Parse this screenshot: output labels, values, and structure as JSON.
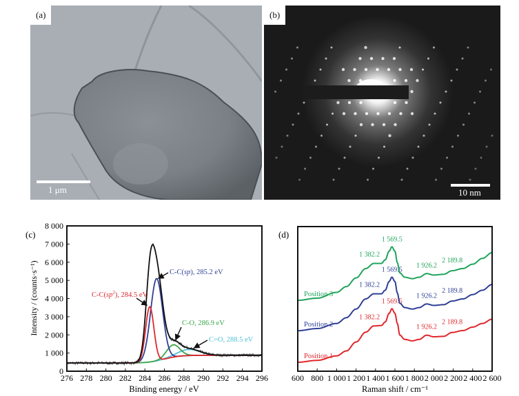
{
  "panels": {
    "a": {
      "label": "(a)",
      "scale_bar": "1 μm"
    },
    "b": {
      "label": "(b)",
      "scale_bar": "10 nm"
    }
  },
  "chart_data": [
    {
      "panel": "(c)",
      "type": "line",
      "xlabel": "Binding energy / eV",
      "ylabel": "Intensity / (counts·s⁻¹)",
      "xlim": [
        276,
        296
      ],
      "ylim": [
        0,
        8000
      ],
      "x_ticks": [
        "276",
        "278",
        "280",
        "282",
        "284",
        "286",
        "288",
        "290",
        "292",
        "294",
        "296"
      ],
      "y_ticks": [
        "0",
        "1 000",
        "2 000",
        "3 000",
        "4 000",
        "5 000",
        "6 000",
        "7 000",
        "8 000"
      ],
      "background": {
        "left": 450,
        "right": 880
      },
      "envelope_peak": {
        "x": 284.9,
        "y": 7000
      },
      "components": [
        {
          "label_pre": "C-C(",
          "label_it": "sp",
          "label_sup": "2",
          "label_post": "), 284.5 eV",
          "center": 284.5,
          "peak": 3550,
          "fwhm": 1.0,
          "color": "#e0262b"
        },
        {
          "label_pre": "C-C(",
          "label_it": "sp",
          "label_sup": "",
          "label_post": "), 285.2 eV",
          "center": 285.2,
          "peak": 5100,
          "fwhm": 1.45,
          "color": "#2e3f96"
        },
        {
          "label_pre": "C-O, 286.9 eV",
          "label_it": "",
          "label_sup": "",
          "label_post": "",
          "center": 286.9,
          "peak": 1450,
          "fwhm": 1.6,
          "color": "#3aa548"
        },
        {
          "label_pre": "C=O, 288.5 eV",
          "label_it": "",
          "label_sup": "",
          "label_post": "",
          "center": 288.5,
          "peak": 1200,
          "fwhm": 2.6,
          "color": "#4fbfd6"
        }
      ],
      "envelope_color": "#111111"
    },
    {
      "panel": "(d)",
      "type": "line",
      "xlabel": "Raman shift / cm⁻¹",
      "xlim": [
        600,
        2600
      ],
      "x_ticks": [
        "600",
        "800",
        "1 000",
        "1 200",
        "1 400",
        "1 600",
        "1 800",
        "2 000",
        "2 200",
        "2 400",
        "2 600"
      ],
      "series": [
        {
          "name": "Position 1",
          "color": "#e0262b",
          "peaks": [
            "1 382.2",
            "1 569.5",
            "1 926.2",
            "2 189.8"
          ],
          "points": [
            [
              600,
              6.2
            ],
            [
              800,
              7.5
            ],
            [
              1000,
              10.6
            ],
            [
              1100,
              14
            ],
            [
              1200,
              20.2
            ],
            [
              1300,
              27
            ],
            [
              1382,
              31.3
            ],
            [
              1460,
              31.6
            ],
            [
              1500,
              34
            ],
            [
              1540,
              40
            ],
            [
              1569,
              43.2
            ],
            [
              1600,
              40
            ],
            [
              1625,
              33
            ],
            [
              1650,
              25
            ],
            [
              1700,
              22
            ],
            [
              1780,
              21
            ],
            [
              1850,
              22
            ],
            [
              1926,
              24.9
            ],
            [
              2000,
              23.8
            ],
            [
              2100,
              24.1
            ],
            [
              2189,
              26.8
            ],
            [
              2300,
              28.1
            ],
            [
              2400,
              30.5
            ],
            [
              2500,
              33
            ],
            [
              2600,
              36
            ]
          ]
        },
        {
          "name": "Position 2",
          "color": "#2e3f96",
          "peaks": [
            "1 382.2",
            "1 569.5",
            "1 926.2",
            "2 189.8"
          ],
          "points": [
            [
              600,
              28
            ],
            [
              800,
              29.5
            ],
            [
              1000,
              33
            ],
            [
              1100,
              37
            ],
            [
              1200,
              43
            ],
            [
              1300,
              50
            ],
            [
              1382,
              53.5
            ],
            [
              1460,
              53.5
            ],
            [
              1500,
              56
            ],
            [
              1540,
              62
            ],
            [
              1569,
              65
            ],
            [
              1600,
              62
            ],
            [
              1625,
              54
            ],
            [
              1650,
              47
            ],
            [
              1700,
              44
            ],
            [
              1780,
              43
            ],
            [
              1850,
              44
            ],
            [
              1926,
              46.5
            ],
            [
              2000,
              45.5
            ],
            [
              2100,
              46
            ],
            [
              2189,
              48.5
            ],
            [
              2300,
              50
            ],
            [
              2400,
              53
            ],
            [
              2500,
              56
            ],
            [
              2600,
              60
            ]
          ]
        },
        {
          "name": "Position 3",
          "color": "#1fa35a",
          "peaks": [
            "1 382.2",
            "1 569.5",
            "1 926.2",
            "2 189.8"
          ],
          "points": [
            [
              600,
              49
            ],
            [
              800,
              50.5
            ],
            [
              1000,
              54.5
            ],
            [
              1100,
              58.5
            ],
            [
              1200,
              64.5
            ],
            [
              1300,
              71
            ],
            [
              1382,
              74.5
            ],
            [
              1460,
              74.5
            ],
            [
              1500,
              77
            ],
            [
              1540,
              83
            ],
            [
              1569,
              86
            ],
            [
              1600,
              83
            ],
            [
              1625,
              75
            ],
            [
              1650,
              68
            ],
            [
              1700,
              65
            ],
            [
              1780,
              64
            ],
            [
              1850,
              65
            ],
            [
              1926,
              67.5
            ],
            [
              2000,
              66.5
            ],
            [
              2100,
              67
            ],
            [
              2189,
              69.5
            ],
            [
              2300,
              71
            ],
            [
              2400,
              74
            ],
            [
              2500,
              78
            ],
            [
              2600,
              82
            ]
          ]
        }
      ]
    }
  ]
}
